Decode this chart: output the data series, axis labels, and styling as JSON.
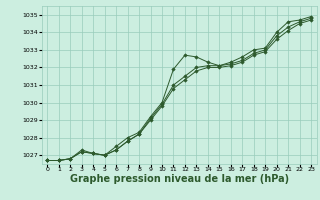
{
  "background_color": "#cceee0",
  "grid_color": "#99ccbb",
  "line_color": "#2d5a2d",
  "marker_color": "#2d5a2d",
  "xlabel": "Graphe pression niveau de la mer (hPa)",
  "xlabel_fontsize": 7,
  "xlim": [
    -0.5,
    23.5
  ],
  "ylim": [
    1026.5,
    1035.5
  ],
  "yticks": [
    1027,
    1028,
    1029,
    1030,
    1031,
    1032,
    1033,
    1034,
    1035
  ],
  "xticks": [
    0,
    1,
    2,
    3,
    4,
    5,
    6,
    7,
    8,
    9,
    10,
    11,
    12,
    13,
    14,
    15,
    16,
    17,
    18,
    19,
    20,
    21,
    22,
    23
  ],
  "series1": [
    1026.7,
    1026.7,
    1026.8,
    1027.3,
    1027.1,
    1027.0,
    1027.5,
    1028.0,
    1028.3,
    1029.2,
    1030.0,
    1031.9,
    1032.7,
    1032.6,
    1032.3,
    1032.1,
    1032.3,
    1032.6,
    1033.0,
    1033.1,
    1034.0,
    1034.6,
    1034.7,
    1034.9
  ],
  "series2": [
    1026.7,
    1026.7,
    1026.8,
    1027.2,
    1027.1,
    1027.0,
    1027.3,
    1027.8,
    1028.2,
    1029.1,
    1029.9,
    1031.0,
    1031.5,
    1032.0,
    1032.1,
    1032.1,
    1032.2,
    1032.4,
    1032.8,
    1033.0,
    1033.8,
    1034.3,
    1034.6,
    1034.8
  ],
  "series3": [
    1026.7,
    1026.7,
    1026.8,
    1027.2,
    1027.1,
    1027.0,
    1027.3,
    1027.8,
    1028.2,
    1029.0,
    1029.8,
    1030.8,
    1031.3,
    1031.8,
    1032.0,
    1032.0,
    1032.1,
    1032.3,
    1032.7,
    1032.9,
    1033.6,
    1034.1,
    1034.5,
    1034.7
  ]
}
